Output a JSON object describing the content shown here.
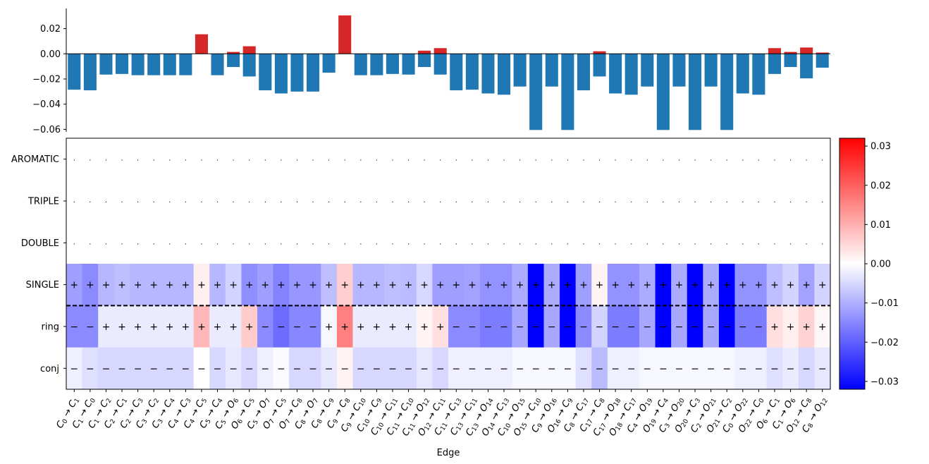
{
  "chart_data": [
    {
      "type": "bar",
      "title": "",
      "xlabel": "",
      "ylabel": "",
      "ylim": [
        -0.062,
        0.036
      ],
      "yticks": [
        "0.02",
        "0.00",
        "−0.02",
        "−0.04",
        "−0.06"
      ],
      "ytick_values": [
        0.02,
        0.0,
        -0.02,
        -0.04,
        -0.06
      ],
      "categories": [
        "C0 → C1",
        "C1 → C0",
        "C1 → C2",
        "C2 → C1",
        "C2 → C3",
        "C3 → C2",
        "C3 → C4",
        "C4 → C3",
        "C4 → C5",
        "C5 → C4",
        "C5 → O6",
        "O6 → C5",
        "C5 → O7",
        "O7 → C5",
        "O7 → C8",
        "C8 → O7",
        "C8 → C9",
        "C9 → C8",
        "C9 → C10",
        "C10 → C9",
        "C10 → C11",
        "C11 → C10",
        "C11 → O12",
        "O12 → C11",
        "C11 → C13",
        "C13 → C11",
        "C13 → O14",
        "O14 → C13",
        "C10 → O15",
        "O15 → C10",
        "C9 → O16",
        "O16 → C9",
        "C8 → C17",
        "C17 → C8",
        "C17 → O18",
        "O18 → C17",
        "C4 → O19",
        "O19 → C4",
        "C3 → O20",
        "O20 → C3",
        "C2 → O21",
        "O21 → C2",
        "C0 → O22",
        "O22 → C0",
        "O6 → C1",
        "C1 → O6",
        "O12 → C8",
        "C8 → O12"
      ],
      "series": [
        {
          "name": "negative",
          "color": "#1f77b4",
          "values": [
            -0.0285,
            -0.029,
            -0.0165,
            -0.016,
            -0.017,
            -0.017,
            -0.017,
            -0.017,
            0.0,
            -0.017,
            -0.0105,
            -0.018,
            -0.029,
            -0.0315,
            -0.03,
            -0.03,
            -0.015,
            0.0,
            -0.017,
            -0.017,
            -0.016,
            -0.0165,
            -0.0105,
            -0.0165,
            -0.029,
            -0.0285,
            -0.0315,
            -0.0325,
            -0.026,
            -0.0605,
            -0.026,
            -0.0605,
            -0.029,
            -0.018,
            -0.0315,
            -0.0325,
            -0.026,
            -0.0605,
            -0.026,
            -0.0605,
            -0.026,
            -0.0605,
            -0.0315,
            -0.0325,
            -0.016,
            -0.0105,
            -0.0195,
            -0.011
          ]
        },
        {
          "name": "positive",
          "color": "#d62728",
          "values": [
            0,
            0,
            0,
            0,
            0,
            0,
            0,
            0,
            0.0155,
            0,
            0.0015,
            0.006,
            0,
            0,
            0,
            0,
            0,
            0.0305,
            0,
            0,
            0,
            0,
            0.0025,
            0.0045,
            0,
            0,
            0,
            0,
            0,
            0,
            0,
            0,
            0,
            0.002,
            0,
            0,
            0,
            0,
            0,
            0,
            0,
            0,
            0,
            0,
            0.0045,
            0.0015,
            0.005,
            0.001
          ]
        }
      ]
    },
    {
      "type": "heatmap",
      "xlabel": "Edge",
      "rows": [
        "AROMATIC",
        "TRIPLE",
        "DOUBLE",
        "SINGLE",
        "ring",
        "conj"
      ],
      "colormap": "bwr",
      "vmin": -0.032,
      "vmax": 0.032,
      "colorbar_ticks": [
        "0.03",
        "0.02",
        "0.01",
        "0.00",
        "−0.01",
        "−0.02",
        "−0.03"
      ],
      "colorbar_tick_values": [
        0.03,
        0.02,
        0.01,
        0.0,
        -0.01,
        -0.02,
        -0.03
      ],
      "values": [
        [
          0,
          0,
          0,
          0,
          0,
          0,
          0,
          0,
          0,
          0,
          0,
          0,
          0,
          0,
          0,
          0,
          0,
          0,
          0,
          0,
          0,
          0,
          0,
          0,
          0,
          0,
          0,
          0,
          0,
          0,
          0,
          0,
          0,
          0,
          0,
          0,
          0,
          0,
          0,
          0,
          0,
          0,
          0,
          0,
          0,
          0,
          0,
          0
        ],
        [
          0,
          0,
          0,
          0,
          0,
          0,
          0,
          0,
          0,
          0,
          0,
          0,
          0,
          0,
          0,
          0,
          0,
          0,
          0,
          0,
          0,
          0,
          0,
          0,
          0,
          0,
          0,
          0,
          0,
          0,
          0,
          0,
          0,
          0,
          0,
          0,
          0,
          0,
          0,
          0,
          0,
          0,
          0,
          0,
          0,
          0,
          0,
          0
        ],
        [
          0,
          0,
          0,
          0,
          0,
          0,
          0,
          0,
          0,
          0,
          0,
          0,
          0,
          0,
          0,
          0,
          0,
          0,
          0,
          0,
          0,
          0,
          0,
          0,
          0,
          0,
          0,
          0,
          0,
          0,
          0,
          0,
          0,
          0,
          0,
          0,
          0,
          0,
          0,
          0,
          0,
          0,
          0,
          0,
          0,
          0,
          0,
          0
        ],
        [
          -0.012,
          -0.0145,
          -0.009,
          -0.008,
          -0.009,
          -0.009,
          -0.009,
          -0.009,
          0.002,
          -0.009,
          -0.0055,
          -0.014,
          -0.012,
          -0.0155,
          -0.013,
          -0.013,
          -0.008,
          0.006,
          -0.009,
          -0.009,
          -0.008,
          -0.0085,
          -0.005,
          -0.012,
          -0.012,
          -0.0115,
          -0.0135,
          -0.0135,
          -0.0105,
          -0.032,
          -0.0105,
          -0.032,
          -0.012,
          0.0015,
          -0.0135,
          -0.0135,
          -0.0105,
          -0.032,
          -0.0105,
          -0.032,
          -0.0105,
          -0.032,
          -0.0135,
          -0.0135,
          -0.008,
          -0.0055,
          -0.0115,
          -0.0055
        ],
        [
          -0.0145,
          -0.0145,
          -0.0025,
          -0.0025,
          -0.0025,
          -0.0025,
          -0.0025,
          -0.0025,
          0.009,
          -0.0025,
          -0.0025,
          0.0065,
          -0.0145,
          -0.0185,
          -0.015,
          -0.015,
          -0.001,
          0.016,
          -0.0025,
          -0.0025,
          -0.0025,
          -0.0025,
          0.0015,
          0.004,
          -0.0145,
          -0.0145,
          -0.0165,
          -0.0165,
          -0.011,
          -0.032,
          -0.011,
          -0.032,
          -0.0145,
          -0.0055,
          -0.0165,
          -0.0165,
          -0.011,
          -0.032,
          -0.011,
          -0.032,
          -0.011,
          -0.032,
          -0.0165,
          -0.0165,
          0.004,
          0.002,
          0.0055,
          0.001
        ],
        [
          -0.002,
          -0.004,
          -0.005,
          -0.005,
          -0.005,
          -0.005,
          -0.005,
          -0.005,
          0.0,
          -0.005,
          -0.003,
          -0.005,
          -0.002,
          -0.0005,
          -0.005,
          -0.005,
          -0.003,
          0.0015,
          -0.005,
          -0.005,
          -0.005,
          -0.005,
          -0.003,
          -0.005,
          -0.002,
          -0.002,
          -0.002,
          -0.002,
          -0.001,
          -0.001,
          -0.001,
          -0.001,
          -0.004,
          -0.0085,
          -0.002,
          -0.002,
          -0.001,
          -0.001,
          -0.001,
          -0.001,
          -0.001,
          -0.001,
          -0.002,
          -0.002,
          -0.004,
          -0.0025,
          -0.005,
          -0.003
        ]
      ],
      "annotations": [
        [
          ".",
          ".",
          ".",
          ".",
          ".",
          ".",
          ".",
          ".",
          ".",
          ".",
          ".",
          ".",
          ".",
          ".",
          ".",
          ".",
          ".",
          ".",
          ".",
          ".",
          ".",
          ".",
          ".",
          ".",
          ".",
          ".",
          ".",
          ".",
          ".",
          ".",
          ".",
          ".",
          ".",
          ".",
          ".",
          ".",
          ".",
          ".",
          ".",
          ".",
          ".",
          ".",
          ".",
          ".",
          ".",
          ".",
          ".",
          "."
        ],
        [
          ".",
          ".",
          ".",
          ".",
          ".",
          ".",
          ".",
          ".",
          ".",
          ".",
          ".",
          ".",
          ".",
          ".",
          ".",
          ".",
          ".",
          ".",
          ".",
          ".",
          ".",
          ".",
          ".",
          ".",
          ".",
          ".",
          ".",
          ".",
          ".",
          ".",
          ".",
          ".",
          ".",
          ".",
          ".",
          ".",
          ".",
          ".",
          ".",
          ".",
          ".",
          ".",
          ".",
          ".",
          ".",
          ".",
          ".",
          "."
        ],
        [
          ".",
          ".",
          ".",
          ".",
          ".",
          ".",
          ".",
          ".",
          ".",
          ".",
          ".",
          ".",
          ".",
          ".",
          ".",
          ".",
          ".",
          ".",
          ".",
          ".",
          ".",
          ".",
          ".",
          ".",
          ".",
          ".",
          ".",
          ".",
          ".",
          ".",
          ".",
          ".",
          ".",
          ".",
          ".",
          ".",
          ".",
          ".",
          ".",
          ".",
          ".",
          ".",
          ".",
          ".",
          ".",
          ".",
          ".",
          "."
        ],
        [
          "+",
          "+",
          "+",
          "+",
          "+",
          "+",
          "+",
          "+",
          "+",
          "+",
          "+",
          "+",
          "+",
          "+",
          "+",
          "+",
          "+",
          "+",
          "+",
          "+",
          "+",
          "+",
          "+",
          "+",
          "+",
          "+",
          "+",
          "+",
          "+",
          "+",
          "+",
          "+",
          "+",
          "+",
          "+",
          "+",
          "+",
          "+",
          "+",
          "+",
          "+",
          "+",
          "+",
          "+",
          "+",
          "+",
          "+",
          "+"
        ],
        [
          "−",
          "−",
          "+",
          "+",
          "+",
          "+",
          "+",
          "+",
          "+",
          "+",
          "+",
          "+",
          "−",
          "−",
          "−",
          "−",
          "+",
          "+",
          "+",
          "+",
          "+",
          "+",
          "+",
          "+",
          "−",
          "−",
          "−",
          "−",
          "−",
          "−",
          "−",
          "−",
          "−",
          "−",
          "−",
          "−",
          "−",
          "−",
          "−",
          "−",
          "−",
          "−",
          "−",
          "−",
          "+",
          "+",
          "+",
          "+"
        ],
        [
          "−",
          "−",
          "−",
          "−",
          "−",
          "−",
          "−",
          "−",
          "−",
          "−",
          "−",
          "−",
          "−",
          "−",
          "−",
          "−",
          "−",
          "−",
          "−",
          "−",
          "−",
          "−",
          "−",
          "−",
          "−",
          "−",
          "−",
          "−",
          "−",
          "−",
          "−",
          "−",
          "−",
          "−",
          "−",
          "−",
          "−",
          "−",
          "−",
          "−",
          "−",
          "−",
          "−",
          "−",
          "−",
          "−",
          "−",
          "−"
        ]
      ],
      "edge_labels": [
        [
          "C",
          "0",
          "C",
          "1"
        ],
        [
          "C",
          "1",
          "C",
          "0"
        ],
        [
          "C",
          "1",
          "C",
          "2"
        ],
        [
          "C",
          "2",
          "C",
          "1"
        ],
        [
          "C",
          "2",
          "C",
          "3"
        ],
        [
          "C",
          "3",
          "C",
          "2"
        ],
        [
          "C",
          "3",
          "C",
          "4"
        ],
        [
          "C",
          "4",
          "C",
          "3"
        ],
        [
          "C",
          "4",
          "C",
          "5"
        ],
        [
          "C",
          "5",
          "C",
          "4"
        ],
        [
          "C",
          "5",
          "O",
          "6"
        ],
        [
          "O",
          "6",
          "C",
          "5"
        ],
        [
          "C",
          "5",
          "O",
          "7"
        ],
        [
          "O",
          "7",
          "C",
          "5"
        ],
        [
          "O",
          "7",
          "C",
          "8"
        ],
        [
          "C",
          "8",
          "O",
          "7"
        ],
        [
          "C",
          "8",
          "C",
          "9"
        ],
        [
          "C",
          "9",
          "C",
          "8"
        ],
        [
          "C",
          "9",
          "C",
          "10"
        ],
        [
          "C",
          "10",
          "C",
          "9"
        ],
        [
          "C",
          "10",
          "C",
          "11"
        ],
        [
          "C",
          "11",
          "C",
          "10"
        ],
        [
          "C",
          "11",
          "O",
          "12"
        ],
        [
          "O",
          "12",
          "C",
          "11"
        ],
        [
          "C",
          "11",
          "C",
          "13"
        ],
        [
          "C",
          "13",
          "C",
          "11"
        ],
        [
          "C",
          "13",
          "O",
          "14"
        ],
        [
          "O",
          "14",
          "C",
          "13"
        ],
        [
          "C",
          "10",
          "O",
          "15"
        ],
        [
          "O",
          "15",
          "C",
          "10"
        ],
        [
          "C",
          "9",
          "O",
          "16"
        ],
        [
          "O",
          "16",
          "C",
          "9"
        ],
        [
          "C",
          "8",
          "C",
          "17"
        ],
        [
          "C",
          "17",
          "C",
          "8"
        ],
        [
          "C",
          "17",
          "O",
          "18"
        ],
        [
          "O",
          "18",
          "C",
          "17"
        ],
        [
          "C",
          "4",
          "O",
          "19"
        ],
        [
          "O",
          "19",
          "C",
          "4"
        ],
        [
          "C",
          "3",
          "O",
          "20"
        ],
        [
          "O",
          "20",
          "C",
          "3"
        ],
        [
          "C",
          "2",
          "O",
          "21"
        ],
        [
          "O",
          "21",
          "C",
          "2"
        ],
        [
          "C",
          "0",
          "O",
          "22"
        ],
        [
          "O",
          "22",
          "C",
          "0"
        ],
        [
          "O",
          "6",
          "C",
          "1"
        ],
        [
          "C",
          "1",
          "O",
          "6"
        ],
        [
          "O",
          "12",
          "C",
          "8"
        ],
        [
          "C",
          "8",
          "O",
          "12"
        ]
      ],
      "arrow": "→"
    }
  ]
}
